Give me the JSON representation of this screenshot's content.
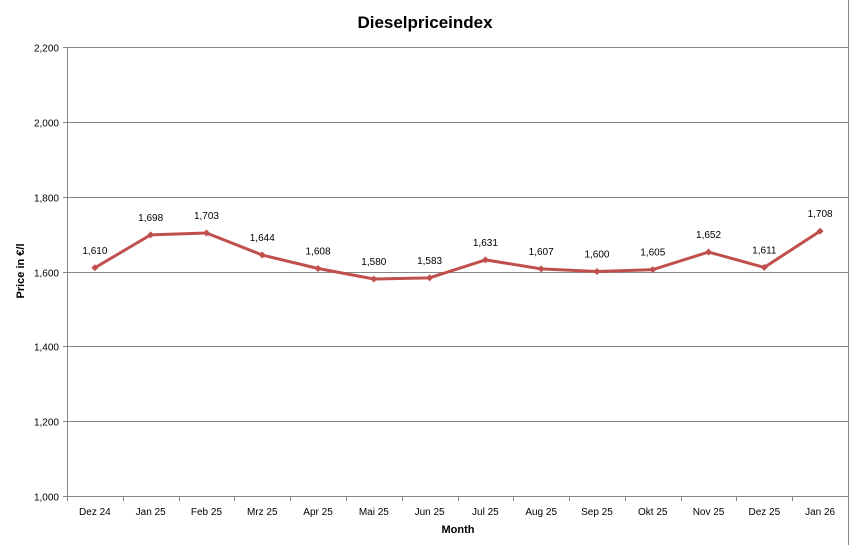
{
  "chart_data": {
    "type": "line",
    "title": "Dieselpriceindex",
    "xlabel": "Month",
    "ylabel": "Price in €/l",
    "ylim": [
      1000,
      2200
    ],
    "yticks": [
      1000,
      1200,
      1400,
      1600,
      1800,
      2000,
      2200
    ],
    "ytick_labels": [
      "1,000",
      "1,200",
      "1,400",
      "1,600",
      "1,800",
      "2,000",
      "2,200"
    ],
    "grid": true,
    "legend": "none",
    "color": "#C0504D",
    "categories": [
      "Dez 24",
      "Jan 25",
      "Feb 25",
      "Mrz 25",
      "Apr 25",
      "Mai 25",
      "Jun 25",
      "Jul 25",
      "Aug 25",
      "Sep 25",
      "Okt 25",
      "Nov 25",
      "Dez 25",
      "Jan 26"
    ],
    "series": [
      {
        "name": "Dieselpriceindex",
        "values": [
          1610,
          1698,
          1703,
          1644,
          1608,
          1580,
          1583,
          1631,
          1607,
          1600,
          1605,
          1652,
          1611,
          1708
        ]
      }
    ],
    "data_labels": [
      "1,610",
      "1,698",
      "1,703",
      "1,644",
      "1,608",
      "1,580",
      "1,583",
      "1,631",
      "1,607",
      "1,600",
      "1,605",
      "1,652",
      "1,611",
      "1,708"
    ]
  }
}
